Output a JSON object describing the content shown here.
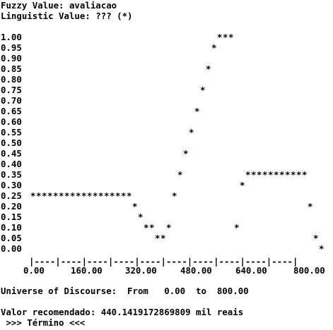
{
  "console": {
    "line1": "Fuzzy Value: avaliacao",
    "line2": "Linguistic Value: ??? (*)",
    "universe_line": "Universe of Discourse:  From   0.00  to  800.00",
    "recommendation_line": "Valor recomendado: 440.1419172869809 mil reais",
    "end_line": " >>> Término <<<"
  },
  "chart_data": {
    "type": "scatter",
    "title": "",
    "xlabel": "",
    "ylabel": "",
    "xlim": [
      0,
      800
    ],
    "ylim": [
      0,
      1
    ],
    "x_ticks": [
      "0.00",
      "160.00",
      "320.00",
      "480.00",
      "640.00",
      "800.00"
    ],
    "y_ticks": [
      "1.00",
      "0.95",
      "0.90",
      "0.85",
      "0.80",
      "0.75",
      "0.70",
      "0.65",
      "0.60",
      "0.55",
      "0.50",
      "0.45",
      "0.40",
      "0.35",
      "0.30",
      "0.25",
      "0.20",
      "0.15",
      "0.10",
      "0.05",
      "0.00"
    ],
    "axis_text": "|----|----|----|----|----|----|----|----|----|----|",
    "marker": "*",
    "series": [
      {
        "points": [
          {
            "x": 0,
            "y": 0.25
          },
          {
            "x": 16,
            "y": 0.25
          },
          {
            "x": 32,
            "y": 0.25
          },
          {
            "x": 48,
            "y": 0.25
          },
          {
            "x": 64,
            "y": 0.25
          },
          {
            "x": 80,
            "y": 0.25
          },
          {
            "x": 96,
            "y": 0.25
          },
          {
            "x": 112,
            "y": 0.25
          },
          {
            "x": 128,
            "y": 0.25
          },
          {
            "x": 144,
            "y": 0.25
          },
          {
            "x": 160,
            "y": 0.25
          },
          {
            "x": 176,
            "y": 0.25
          },
          {
            "x": 192,
            "y": 0.25
          },
          {
            "x": 208,
            "y": 0.25
          },
          {
            "x": 224,
            "y": 0.25
          },
          {
            "x": 240,
            "y": 0.25
          },
          {
            "x": 256,
            "y": 0.25
          },
          {
            "x": 272,
            "y": 0.25
          },
          {
            "x": 288,
            "y": 0.2
          },
          {
            "x": 304,
            "y": 0.15
          },
          {
            "x": 320,
            "y": 0.1
          },
          {
            "x": 336,
            "y": 0.1
          },
          {
            "x": 352,
            "y": 0.05
          },
          {
            "x": 368,
            "y": 0.05
          },
          {
            "x": 384,
            "y": 0.1
          },
          {
            "x": 400,
            "y": 0.25
          },
          {
            "x": 416,
            "y": 0.35
          },
          {
            "x": 432,
            "y": 0.45
          },
          {
            "x": 448,
            "y": 0.55
          },
          {
            "x": 464,
            "y": 0.65
          },
          {
            "x": 480,
            "y": 0.75
          },
          {
            "x": 496,
            "y": 0.85
          },
          {
            "x": 512,
            "y": 0.95
          },
          {
            "x": 528,
            "y": 1.0
          },
          {
            "x": 544,
            "y": 1.0
          },
          {
            "x": 560,
            "y": 1.0
          },
          {
            "x": 576,
            "y": 0.1
          },
          {
            "x": 592,
            "y": 0.3
          },
          {
            "x": 608,
            "y": 0.35
          },
          {
            "x": 624,
            "y": 0.35
          },
          {
            "x": 640,
            "y": 0.35
          },
          {
            "x": 656,
            "y": 0.35
          },
          {
            "x": 672,
            "y": 0.35
          },
          {
            "x": 688,
            "y": 0.35
          },
          {
            "x": 704,
            "y": 0.35
          },
          {
            "x": 720,
            "y": 0.35
          },
          {
            "x": 736,
            "y": 0.35
          },
          {
            "x": 752,
            "y": 0.35
          },
          {
            "x": 768,
            "y": 0.35
          },
          {
            "x": 784,
            "y": 0.2
          },
          {
            "x": 800,
            "y": 0.05
          },
          {
            "x": 816,
            "y": 0.0
          }
        ]
      }
    ]
  }
}
